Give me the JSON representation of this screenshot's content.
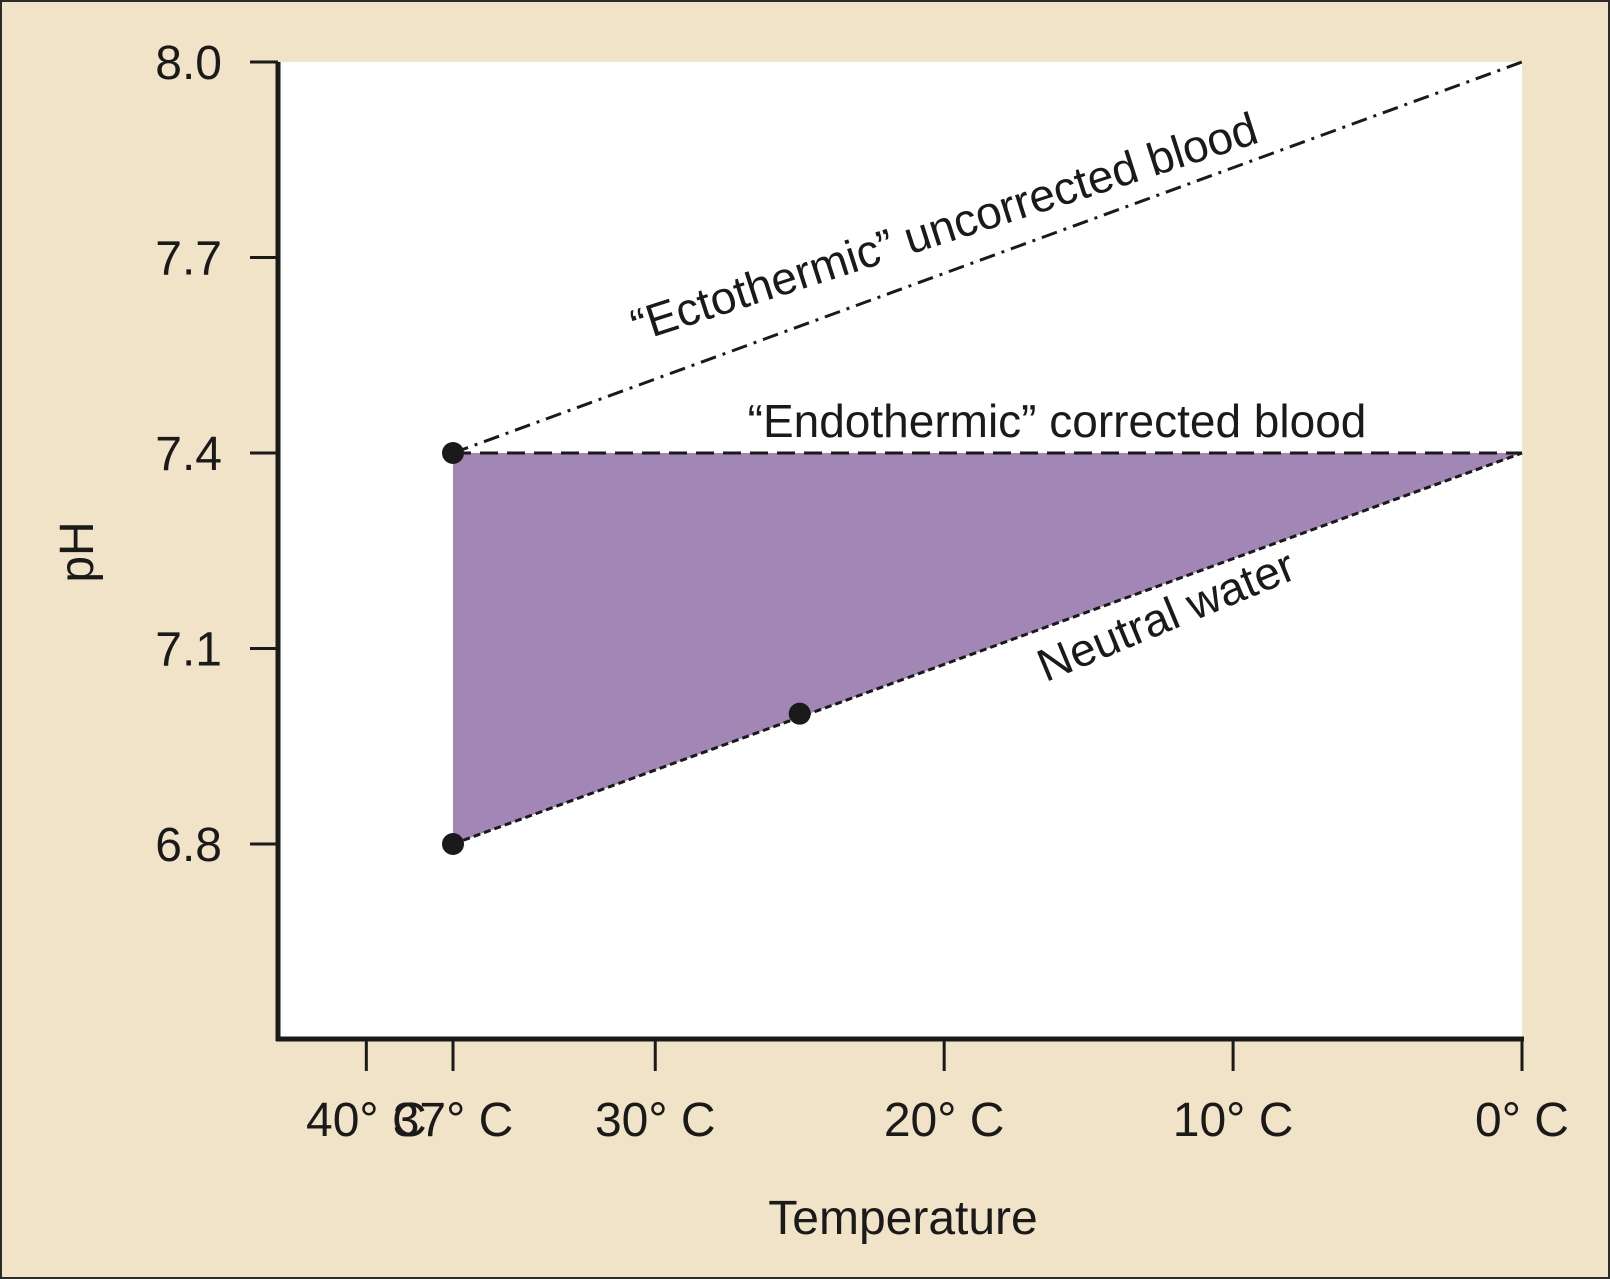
{
  "colors": {
    "background": "#f0e3c8",
    "border": "#2b2b2b",
    "plot_area": "#ffffff",
    "fill_region": "#a287b6",
    "line": "#1a1a1a"
  },
  "chart_data": {
    "type": "line",
    "title": "",
    "xlabel": "Temperature",
    "ylabel": "pH",
    "x_reversed": true,
    "xlim": [
      43,
      0
    ],
    "ylim": [
      6.3,
      8.0
    ],
    "x_ticks": [
      40,
      37,
      30,
      20,
      10,
      0
    ],
    "x_tick_labels": [
      "40° C",
      "37° C",
      "30° C",
      "20° C",
      "10° C",
      "0° C"
    ],
    "y_ticks": [
      8.0,
      7.7,
      7.4,
      7.1,
      6.8
    ],
    "y_tick_labels": [
      "8.0",
      "7.7",
      "7.4",
      "7.1",
      "6.8"
    ],
    "grid": false,
    "legend": "none",
    "series": [
      {
        "name": "“Ectothermic” uncorrected blood",
        "style": "dash-dot",
        "x": [
          37,
          0
        ],
        "y": [
          7.4,
          8.0
        ]
      },
      {
        "name": "“Endothermic” corrected blood",
        "style": "dashed",
        "x": [
          37,
          0
        ],
        "y": [
          7.4,
          7.4
        ]
      },
      {
        "name": "Neutral water",
        "style": "dotted-dash",
        "x": [
          37,
          0
        ],
        "y": [
          6.8,
          7.4
        ]
      }
    ],
    "points": [
      {
        "x": 37,
        "y": 7.4
      },
      {
        "x": 37,
        "y": 6.8
      },
      {
        "x": 25,
        "y": 7.0
      }
    ],
    "shaded_region": {
      "x": [
        37,
        0,
        37
      ],
      "y": [
        7.4,
        7.4,
        6.8
      ]
    }
  }
}
